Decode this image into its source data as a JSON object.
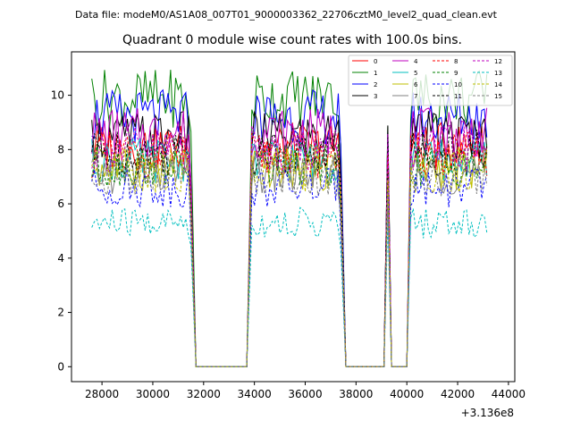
{
  "suptitle": "Data file: modeM0/AS1A08_007T01_9000003362_22706cztM0_level2_quad_clean.evt",
  "chart_data": {
    "type": "line",
    "title": "Quadrant 0 module wise count rates with 100.0s bins.",
    "xlabel": "",
    "ylabel": "",
    "x_offset_label": "+3.136e8",
    "xlim": [
      26800,
      44250
    ],
    "ylim": [
      -0.55,
      11.6
    ],
    "xticks": [
      28000,
      30000,
      32000,
      34000,
      36000,
      38000,
      40000,
      42000,
      44000
    ],
    "xtick_labels": [
      "28000",
      "30000",
      "32000",
      "34000",
      "36000",
      "38000",
      "40000",
      "42000",
      "44000"
    ],
    "yticks": [
      0,
      2,
      4,
      6,
      8,
      10
    ],
    "ytick_labels": [
      "0",
      "2",
      "4",
      "6",
      "8",
      "10"
    ],
    "bin_width": 100,
    "segments": [
      {
        "start": 27600,
        "end": 31500
      },
      {
        "start": 33900,
        "end": 37400
      },
      {
        "start": 39250,
        "end": 39300
      },
      {
        "start": 40150,
        "end": 43200
      }
    ],
    "gaps": [
      [
        31700,
        33700
      ],
      [
        37600,
        39100
      ],
      [
        39400,
        40000
      ]
    ],
    "series": [
      {
        "name": "0",
        "color": "#ff0000",
        "dash": "solid",
        "level": 8.1
      },
      {
        "name": "1",
        "color": "#008000",
        "dash": "solid",
        "level": 9.9
      },
      {
        "name": "2",
        "color": "#0000ff",
        "dash": "solid",
        "level": 9.2
      },
      {
        "name": "3",
        "color": "#000000",
        "dash": "solid",
        "level": 8.5
      },
      {
        "name": "4",
        "color": "#bf00bf",
        "dash": "solid",
        "level": 8.6
      },
      {
        "name": "5",
        "color": "#00bfbf",
        "dash": "solid",
        "level": 7.6
      },
      {
        "name": "6",
        "color": "#bfbf00",
        "dash": "solid",
        "level": 7.3
      },
      {
        "name": "7",
        "color": "#808080",
        "dash": "solid",
        "level": 7.1
      },
      {
        "name": "8",
        "color": "#ff0000",
        "dash": "dashed",
        "level": 7.8
      },
      {
        "name": "9",
        "color": "#008000",
        "dash": "dashed",
        "level": 7.4
      },
      {
        "name": "10",
        "color": "#0000ff",
        "dash": "dashed",
        "level": 6.6
      },
      {
        "name": "11",
        "color": "#000000",
        "dash": "dashed",
        "level": 7.9
      },
      {
        "name": "12",
        "color": "#bf00bf",
        "dash": "dashed",
        "level": 8.0
      },
      {
        "name": "13",
        "color": "#00bfbf",
        "dash": "dashed",
        "level": 5.3
      },
      {
        "name": "14",
        "color": "#bfbf00",
        "dash": "dashed",
        "level": 7.2
      },
      {
        "name": "15",
        "color": "#808080",
        "dash": "dashed",
        "level": 7.0
      }
    ],
    "legend": {
      "location": "top-right",
      "columns": 4
    }
  }
}
